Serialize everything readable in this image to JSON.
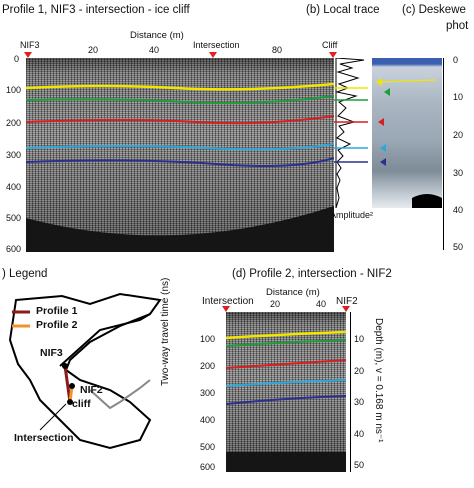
{
  "panels": {
    "profile1_title": "Profile 1, NIF3 - intersection - ice cliff",
    "local_trace_title": "(b) Local trace",
    "deskew_title_1": "(c) Deskewe",
    "deskew_title_2": "phot",
    "legend_title": ") Legend",
    "profile2_title": "(d) Profile 2, intersection - NIF2"
  },
  "profile1": {
    "xlabel": "Distance (m)",
    "markers": [
      "NIF3",
      "Intersection",
      "Cliff"
    ],
    "x_ticks": [
      "20",
      "40",
      "80"
    ],
    "y_ticks": [
      "0",
      "100",
      "200",
      "300",
      "400",
      "500",
      "600"
    ]
  },
  "local_trace": {
    "xlabel": "Amplitude²"
  },
  "depth_axis_c": {
    "ticks": [
      "0",
      "10",
      "20",
      "30",
      "40",
      "50"
    ]
  },
  "legend": {
    "items": [
      {
        "label": "Profile 1",
        "color": "#8b1a1a"
      },
      {
        "label": "Profile 2",
        "color": "#f0932b"
      }
    ],
    "map_labels": [
      "NIF3",
      "NIF2",
      "cliff",
      "Intersection"
    ]
  },
  "profile2": {
    "markers": [
      "Intersection",
      "NIF2"
    ],
    "xlabel": "Distance (m)",
    "x_ticks": [
      "20",
      "40"
    ],
    "ylabel": "Two-way travel time (ns)",
    "y_ticks": [
      "100",
      "200",
      "300",
      "400",
      "500",
      "600"
    ],
    "depth_label": "Depth (m),  v = 0.168 m ns⁻¹",
    "depth_ticks": [
      "10",
      "20",
      "30",
      "40",
      "50"
    ]
  },
  "colors": {
    "yellow": "#f2e600",
    "green": "#1a9e3a",
    "red": "#d81e1e",
    "cyan": "#2aa8e0",
    "navy": "#2b2f8f",
    "marker": "#e02020"
  }
}
